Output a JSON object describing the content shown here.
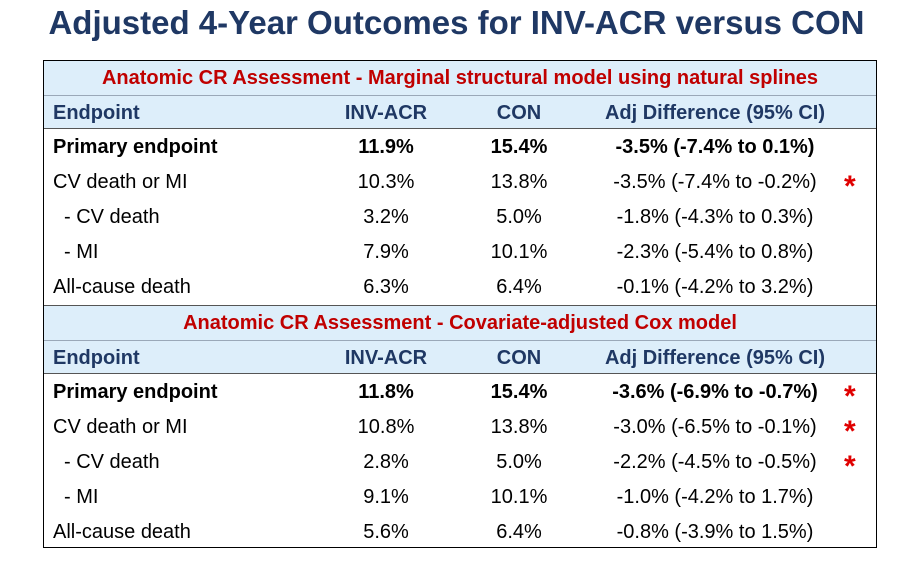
{
  "title": "Adjusted 4-Year Outcomes for INV-ACR versus CON",
  "headers": {
    "endpoint": "Endpoint",
    "inv_acr": "INV-ACR",
    "con": "CON",
    "adj_diff": "Adj Difference (95% CI)"
  },
  "significance_marker": "*",
  "colors": {
    "title": "#1f3864",
    "section_title": "#c00000",
    "header_bg": "#ddeefa",
    "star": "#e00000"
  },
  "section1": {
    "title": "Anatomic CR Assessment - Marginal structural model using natural splines",
    "rows": [
      {
        "endpoint": "Primary endpoint",
        "inv_acr": "11.9%",
        "con": "15.4%",
        "adj_diff": "-3.5% (-7.4% to 0.1%)"
      },
      {
        "endpoint": "CV death or MI",
        "inv_acr": "10.3%",
        "con": "13.8%",
        "adj_diff": "-3.5% (-7.4% to -0.2%)"
      },
      {
        "endpoint": "- CV death",
        "inv_acr": "3.2%",
        "con": "5.0%",
        "adj_diff": "-1.8% (-4.3% to 0.3%)"
      },
      {
        "endpoint": "- MI",
        "inv_acr": "7.9%",
        "con": "10.1%",
        "adj_diff": "-2.3% (-5.4% to 0.8%)"
      },
      {
        "endpoint": "All-cause death",
        "inv_acr": "6.3%",
        "con": "6.4%",
        "adj_diff": "-0.1% (-4.2% to 3.2%)"
      }
    ]
  },
  "section2": {
    "title": "Anatomic CR Assessment - Covariate-adjusted Cox model",
    "rows": [
      {
        "endpoint": "Primary endpoint",
        "inv_acr": "11.8%",
        "con": "15.4%",
        "adj_diff": "-3.6% (-6.9% to -0.7%)"
      },
      {
        "endpoint": "CV death or MI",
        "inv_acr": "10.8%",
        "con": "13.8%",
        "adj_diff": "-3.0% (-6.5% to -0.1%)"
      },
      {
        "endpoint": "- CV death",
        "inv_acr": "2.8%",
        "con": "5.0%",
        "adj_diff": "-2.2% (-4.5% to -0.5%)"
      },
      {
        "endpoint": "- MI",
        "inv_acr": "9.1%",
        "con": "10.1%",
        "adj_diff": "-1.0% (-4.2% to 1.7%)"
      },
      {
        "endpoint": "All-cause death",
        "inv_acr": "5.6%",
        "con": "6.4%",
        "adj_diff": "-0.8% (-3.9% to 1.5%)"
      }
    ]
  }
}
